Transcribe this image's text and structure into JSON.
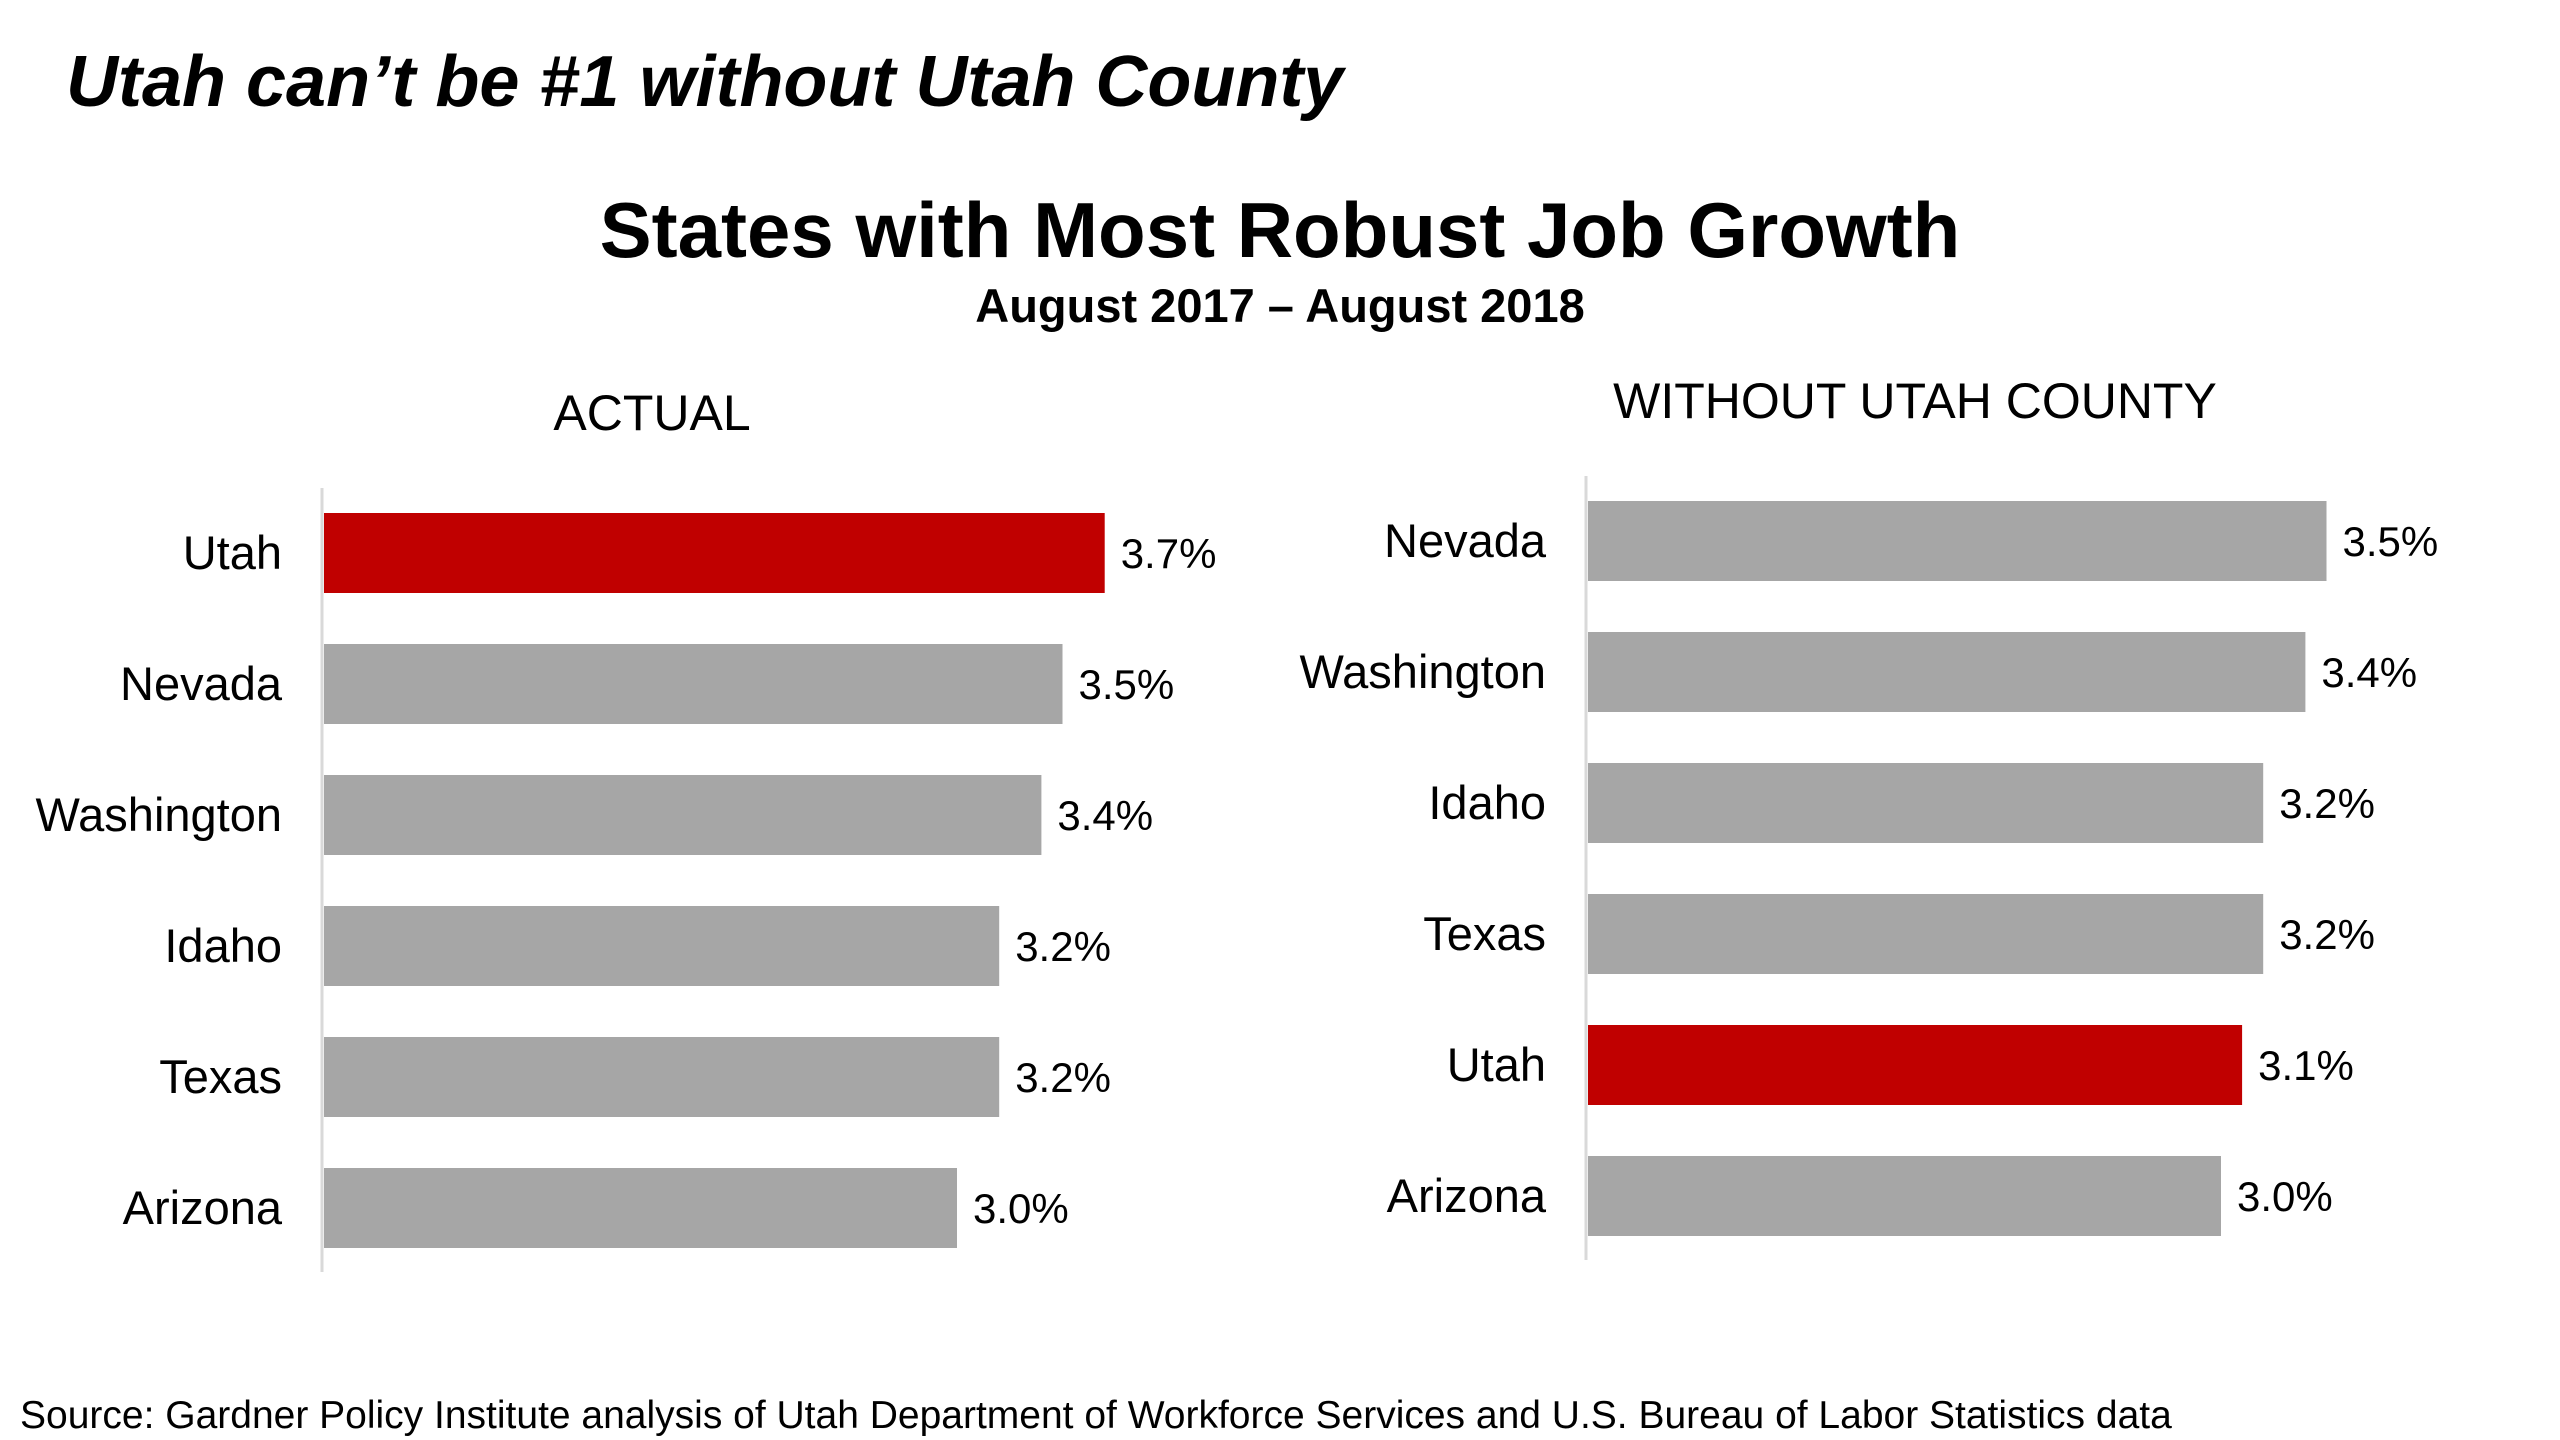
{
  "headline": "Utah can’t be #1 without Utah County",
  "title": "States with Most Robust Job Growth",
  "subtitle": "August 2017 – August 2018",
  "source": "Source:  Gardner Policy Institute analysis of Utah Department of Workforce Services and U.S. Bureau of Labor Statistics data",
  "colors": {
    "highlight": "#c00000",
    "bar": "#a6a6a6",
    "axis": "#d9d9d9"
  },
  "chart_data": [
    {
      "type": "bar",
      "orientation": "horizontal",
      "title": "ACTUAL",
      "categories": [
        "Utah",
        "Nevada",
        "Washington",
        "Idaho",
        "Texas",
        "Arizona"
      ],
      "values": [
        3.7,
        3.5,
        3.4,
        3.2,
        3.2,
        3.0
      ],
      "value_labels": [
        "3.7%",
        "3.5%",
        "3.4%",
        "3.2%",
        "3.2%",
        "3.0%"
      ],
      "highlight": "Utah",
      "xlim": [
        0,
        4.0
      ],
      "grid": false,
      "xlabel": "",
      "ylabel": ""
    },
    {
      "type": "bar",
      "orientation": "horizontal",
      "title": "WITHOUT UTAH COUNTY",
      "categories": [
        "Nevada",
        "Washington",
        "Idaho",
        "Texas",
        "Utah",
        "Arizona"
      ],
      "values": [
        3.5,
        3.4,
        3.2,
        3.2,
        3.1,
        3.0
      ],
      "value_labels": [
        "3.5%",
        "3.4%",
        "3.2%",
        "3.2%",
        "3.1%",
        "3.0%"
      ],
      "highlight": "Utah",
      "xlim": [
        0,
        4.0
      ],
      "grid": false,
      "xlabel": "",
      "ylabel": ""
    }
  ]
}
